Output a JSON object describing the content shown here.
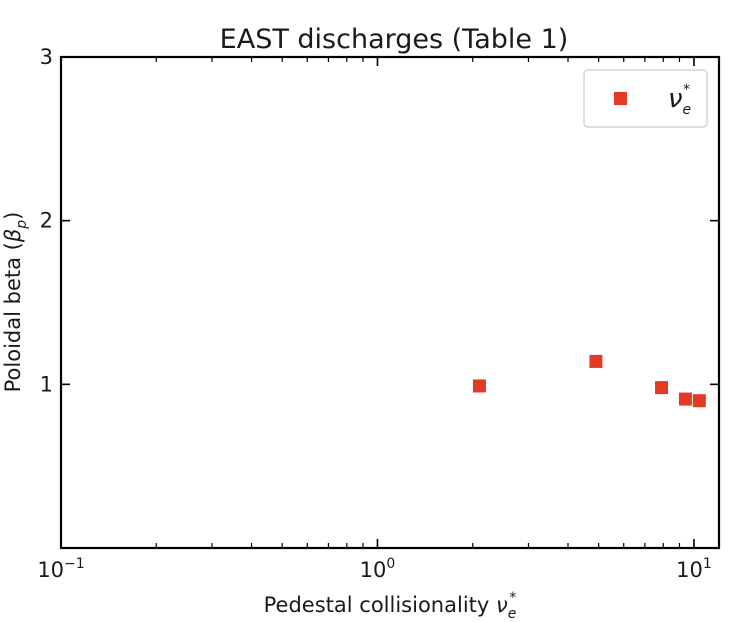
{
  "chart_data": {
    "type": "scatter",
    "title": "EAST discharges (Table 1)",
    "xlabel": "Pedestal collisionality νe*",
    "xlabel_parts": {
      "text": "Pedestal collisionality ",
      "symbol": "ν",
      "sub": "e",
      "sup": "*"
    },
    "ylabel": "Poloidal beta (βp)",
    "ylabel_parts": {
      "text": "Poloidal beta (",
      "symbol": "β",
      "sub": "p",
      "close": ")"
    },
    "x_scale": "log",
    "xlim": [
      0.1,
      12
    ],
    "ylim": [
      0,
      3
    ],
    "x_ticks": [
      {
        "value": 0.1,
        "base": "10",
        "exp": "−1"
      },
      {
        "value": 1,
        "base": "10",
        "exp": "0"
      },
      {
        "value": 10,
        "base": "10",
        "exp": "1"
      }
    ],
    "y_ticks": [
      1,
      2,
      3
    ],
    "legend": {
      "position": "top-right",
      "label": "νe*",
      "symbol": "ν",
      "sub": "e",
      "sup": "*"
    },
    "grid": false,
    "series": [
      {
        "name": "νe*",
        "color": "#e33a26",
        "marker": "square",
        "points": [
          {
            "x": 2.1,
            "y": 0.99
          },
          {
            "x": 4.9,
            "y": 1.14
          },
          {
            "x": 7.9,
            "y": 0.98
          },
          {
            "x": 9.4,
            "y": 0.91
          },
          {
            "x": 10.4,
            "y": 0.9
          }
        ]
      }
    ]
  }
}
